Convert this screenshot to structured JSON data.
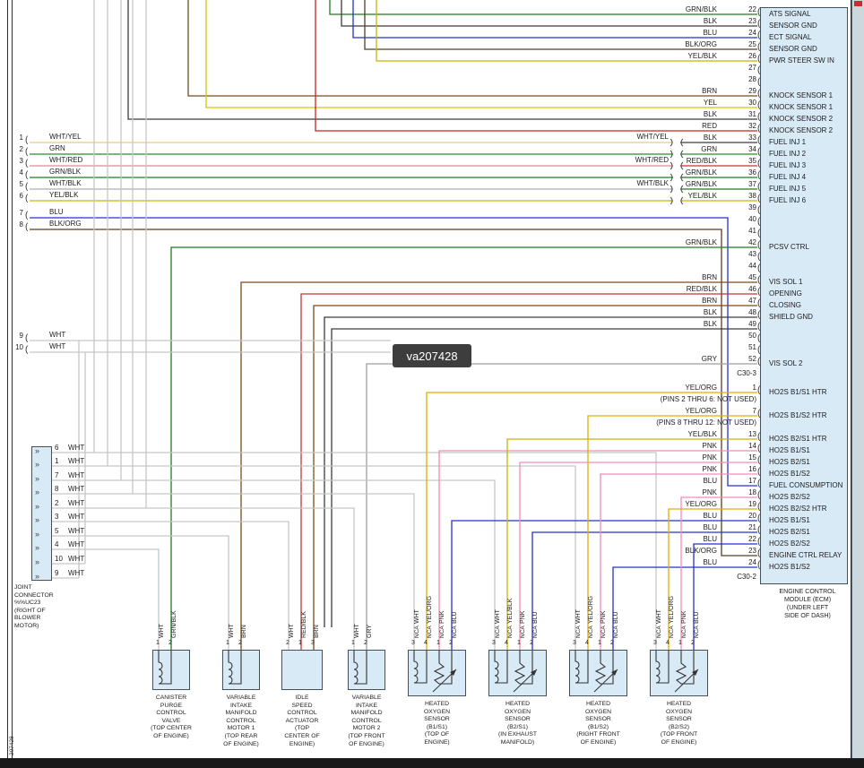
{
  "watermark": "va207428",
  "doc_number": "207428",
  "colors": {
    "BLK": "#3c3c3c",
    "WHT": "#c6c6c6",
    "GRN": "#2e8b2e",
    "GRN/BLK": "#1f7d1f",
    "BLU": "#2433cc",
    "BRN": "#7a4a1e",
    "YEL": "#d7c500",
    "YEL/BLK": "#c9b400",
    "YEL/ORG": "#e0ae00",
    "RED": "#cc2222",
    "RED/BLK": "#c23535",
    "PNK": "#f08cb8",
    "GRY": "#9e9e9e",
    "BLK/ORG": "#55401d",
    "WHT/YEL": "#d9d07e",
    "WHT/RED": "#d68f8f",
    "WHT/BLK": "#adadad",
    "component_fill": "#d9eaf7",
    "watermark_bg": "#3d3d3d"
  },
  "ecm": {
    "title_lines": [
      "ENGINE CONTROL",
      "MODULE (ECM)",
      "(UNDER LEFT",
      "SIDE OF DASH)"
    ],
    "c30_3": {
      "label": "C30-3",
      "pins": [
        {
          "pin": "22",
          "wire": "GRN/BLK",
          "signal": "ATS SIGNAL"
        },
        {
          "pin": "23",
          "wire": "BLK",
          "signal": "SENSOR GND"
        },
        {
          "pin": "24",
          "wire": "BLU",
          "signal": "ECT SIGNAL"
        },
        {
          "pin": "25",
          "wire": "BLK/ORG",
          "signal": "SENSOR GND"
        },
        {
          "pin": "26",
          "wire": "YEL/BLK",
          "signal": "PWR STEER SW IN"
        },
        {
          "pin": "27",
          "wire": "",
          "signal": ""
        },
        {
          "pin": "28",
          "wire": "",
          "signal": ""
        },
        {
          "pin": "29",
          "wire": "BRN",
          "signal": "KNOCK SENSOR 1"
        },
        {
          "pin": "30",
          "wire": "YEL",
          "signal": "KNOCK SENSOR 1"
        },
        {
          "pin": "31",
          "wire": "BLK",
          "signal": "KNOCK SENSOR 2"
        },
        {
          "pin": "32",
          "wire": "RED",
          "signal": "KNOCK SENSOR 2"
        },
        {
          "pin": "33",
          "wire": "BLK",
          "signal": "FUEL INJ 1"
        },
        {
          "pin": "34",
          "wire": "GRN",
          "signal": "FUEL INJ 2"
        },
        {
          "pin": "35",
          "wire": "RED/BLK",
          "signal": "FUEL INJ 3"
        },
        {
          "pin": "36",
          "wire": "GRN/BLK",
          "signal": "FUEL INJ 4"
        },
        {
          "pin": "37",
          "wire": "GRN/BLK",
          "signal": "FUEL INJ 5"
        },
        {
          "pin": "38",
          "wire": "YEL/BLK",
          "signal": "FUEL INJ 6"
        },
        {
          "pin": "39",
          "wire": "",
          "signal": ""
        },
        {
          "pin": "40",
          "wire": "",
          "signal": ""
        },
        {
          "pin": "41",
          "wire": "",
          "signal": ""
        },
        {
          "pin": "42",
          "wire": "GRN/BLK",
          "signal": "PCSV CTRL"
        },
        {
          "pin": "43",
          "wire": "",
          "signal": ""
        },
        {
          "pin": "44",
          "wire": "",
          "signal": ""
        },
        {
          "pin": "45",
          "wire": "BRN",
          "signal": "VIS SOL 1"
        },
        {
          "pin": "46",
          "wire": "RED/BLK",
          "signal": "OPENING"
        },
        {
          "pin": "47",
          "wire": "BRN",
          "signal": "CLOSING"
        },
        {
          "pin": "48",
          "wire": "BLK",
          "signal": "SHIELD GND"
        },
        {
          "pin": "49",
          "wire": "BLK",
          "signal": ""
        },
        {
          "pin": "50",
          "wire": "",
          "signal": ""
        },
        {
          "pin": "51",
          "wire": "",
          "signal": ""
        },
        {
          "pin": "52",
          "wire": "GRY",
          "signal": "VIS SOL 2"
        }
      ]
    },
    "c30_2": {
      "label": "C30-2",
      "rows": [
        {
          "type": "pin",
          "pin": "1",
          "wire": "YEL/ORG",
          "signal": "HO2S B1/S1 HTR"
        },
        {
          "type": "note",
          "text": "(PINS 2 THRU 6: NOT USED)"
        },
        {
          "type": "pin",
          "pin": "7",
          "wire": "YEL/ORG",
          "signal": "HO2S B1/S2 HTR"
        },
        {
          "type": "note",
          "text": "(PINS 8 THRU 12: NOT USED)"
        },
        {
          "type": "pin",
          "pin": "13",
          "wire": "YEL/BLK",
          "signal": "HO2S B2/S1 HTR"
        },
        {
          "type": "pin",
          "pin": "14",
          "wire": "PNK",
          "signal": "HO2S B1/S1"
        },
        {
          "type": "pin",
          "pin": "15",
          "wire": "PNK",
          "signal": "HO2S B2/S1"
        },
        {
          "type": "pin",
          "pin": "16",
          "wire": "PNK",
          "signal": "HO2S B1/S2"
        },
        {
          "type": "pin",
          "pin": "17",
          "wire": "BLU",
          "signal": "FUEL CONSUMPTION"
        },
        {
          "type": "pin",
          "pin": "18",
          "wire": "PNK",
          "signal": "HO2S B2/S2"
        },
        {
          "type": "pin",
          "pin": "19",
          "wire": "YEL/ORG",
          "signal": "HO2S B2/S2 HTR"
        },
        {
          "type": "pin",
          "pin": "20",
          "wire": "BLU",
          "signal": "HO2S B1/S1"
        },
        {
          "type": "pin",
          "pin": "21",
          "wire": "BLU",
          "signal": "HO2S B2/S1"
        },
        {
          "type": "pin",
          "pin": "22",
          "wire": "BLU",
          "signal": "HO2S B2/S2"
        },
        {
          "type": "pin",
          "pin": "23",
          "wire": "BLK/ORG",
          "signal": "ENGINE CTRL RELAY"
        },
        {
          "type": "pin",
          "pin": "24",
          "wire": "BLU",
          "signal": "HO2S B1/S2"
        }
      ]
    }
  },
  "left_pins": [
    {
      "pin": "1",
      "wire": "WHT/YEL"
    },
    {
      "pin": "2",
      "wire": "GRN"
    },
    {
      "pin": "3",
      "wire": "WHT/RED"
    },
    {
      "pin": "4",
      "wire": "GRN/BLK"
    },
    {
      "pin": "5",
      "wire": "WHT/BLK"
    },
    {
      "pin": "6",
      "wire": "YEL/BLK"
    },
    {
      "pin": "7",
      "wire": "BLU"
    },
    {
      "pin": "8",
      "wire": "BLK/ORG"
    },
    {
      "pin": "9",
      "wire": "WHT"
    },
    {
      "pin": "10",
      "wire": "WHT"
    }
  ],
  "mid_labels": [
    "WHT/YEL",
    "WHT/RED",
    "WHT/BLK"
  ],
  "joint_connector": {
    "pins": [
      {
        "pin": "6",
        "wire": "WHT"
      },
      {
        "pin": "1",
        "wire": "WHT"
      },
      {
        "pin": "7",
        "wire": "WHT"
      },
      {
        "pin": "8",
        "wire": "WHT"
      },
      {
        "pin": "2",
        "wire": "WHT"
      },
      {
        "pin": "3",
        "wire": "WHT"
      },
      {
        "pin": "5",
        "wire": "WHT"
      },
      {
        "pin": "4",
        "wire": "WHT"
      },
      {
        "pin": "10",
        "wire": "WHT"
      },
      {
        "pin": "9",
        "wire": "WHT"
      }
    ],
    "label_lines": [
      "JOINT",
      "CONNECTOR",
      "%%UC23",
      "(RIGHT OF",
      "BLOWER",
      "MOTOR)"
    ]
  },
  "components": [
    {
      "id": "canister-purge-control-valve",
      "pins": [
        {
          "n": "1",
          "wire": "WHT"
        },
        {
          "n": "2",
          "wire": "GRN/BLK"
        }
      ],
      "label_lines": [
        "CANISTER",
        "PURGE",
        "CONTROL",
        "VALVE",
        "(TOP CENTER",
        "OF ENGINE)"
      ]
    },
    {
      "id": "variable-intake-manifold-control-motor-1",
      "pins": [
        {
          "n": "1",
          "wire": "WHT"
        },
        {
          "n": "2",
          "wire": "BRN"
        }
      ],
      "label_lines": [
        "VARIABLE",
        "INTAKE",
        "MANIFOLD",
        "CONTROL",
        "MOTOR 1",
        "(TOP REAR",
        "OF ENGINE)"
      ]
    },
    {
      "id": "idle-speed-control-actuator",
      "pins": [
        {
          "n": "2",
          "wire": "WHT"
        },
        {
          "n": "1",
          "wire": "RED/BLK"
        },
        {
          "n": "3",
          "wire": "BRN"
        }
      ],
      "label_lines": [
        "IDLE",
        "SPEED",
        "CONTROL",
        "ACTUATOR",
        "(TOP",
        "CENTER OF",
        "ENGINE)"
      ]
    },
    {
      "id": "variable-intake-manifold-control-motor-2",
      "pins": [
        {
          "n": "1",
          "wire": "WHT"
        },
        {
          "n": "2",
          "wire": "GRY"
        }
      ],
      "label_lines": [
        "VARIABLE",
        "INTAKE",
        "MANIFOLD",
        "CONTROL",
        "MOTOR 2",
        "(TOP FRONT",
        "OF ENGINE)"
      ]
    },
    {
      "id": "heated-oxygen-sensor-b1s1",
      "pins": [
        {
          "n": "3",
          "wire": "WHT",
          "tag": "NCA"
        },
        {
          "n": "4",
          "wire": "YEL/ORG",
          "tag": "NCA"
        },
        {
          "n": "1",
          "wire": "PNK",
          "tag": "NCA"
        },
        {
          "n": "2",
          "wire": "BLU",
          "tag": "NCA"
        }
      ],
      "label_lines": [
        "HEATED",
        "OXYGEN",
        "SENSOR",
        "(B1/S1)",
        "(TOP OF",
        "ENGINE)"
      ]
    },
    {
      "id": "heated-oxygen-sensor-b2s1",
      "pins": [
        {
          "n": "3",
          "wire": "WHT",
          "tag": "NCA"
        },
        {
          "n": "4",
          "wire": "YEL/BLK",
          "tag": "NCA"
        },
        {
          "n": "1",
          "wire": "PNK",
          "tag": "NCA"
        },
        {
          "n": "2",
          "wire": "BLU",
          "tag": "NCA"
        }
      ],
      "label_lines": [
        "HEATED",
        "OXYGEN",
        "SENSOR",
        "(B2/S1)",
        "(IN EXHAUST",
        "MANIFOLD)"
      ]
    },
    {
      "id": "heated-oxygen-sensor-b1s2",
      "pins": [
        {
          "n": "3",
          "wire": "WHT",
          "tag": "NCA"
        },
        {
          "n": "4",
          "wire": "YEL/ORG",
          "tag": "NCA"
        },
        {
          "n": "1",
          "wire": "PNK",
          "tag": "NCA"
        },
        {
          "n": "2",
          "wire": "BLU",
          "tag": "NCA"
        }
      ],
      "label_lines": [
        "HEATED",
        "OXYGEN",
        "SENSOR",
        "(B1/S2)",
        "(RIGHT FRONT",
        "OF ENGINE)"
      ]
    },
    {
      "id": "heated-oxygen-sensor-b2s2",
      "pins": [
        {
          "n": "3",
          "wire": "WHT",
          "tag": "NCA"
        },
        {
          "n": "4",
          "wire": "YEL/ORG",
          "tag": "NCA"
        },
        {
          "n": "1",
          "wire": "PNK",
          "tag": "NCA"
        },
        {
          "n": "2",
          "wire": "BLU",
          "tag": "NCA"
        }
      ],
      "label_lines": [
        "HEATED",
        "OXYGEN",
        "SENSOR",
        "(B2/S2)",
        "(TOP FRONT",
        "OF ENGINE)"
      ]
    }
  ]
}
